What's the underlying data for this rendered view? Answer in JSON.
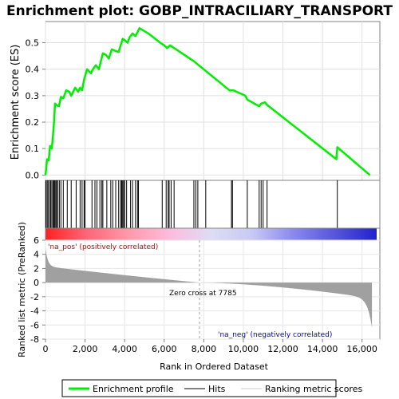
{
  "chart_data": {
    "type": "line",
    "title": "Enrichment plot: GOBP_INTRACILIARY_TRANSPORT",
    "xlabel": "Rank in Ordered Dataset",
    "xlim": [
      0,
      16900
    ],
    "x_ticks": [
      "0",
      "2,000",
      "4,000",
      "6,000",
      "8,000",
      "10,000",
      "12,000",
      "14,000",
      "16,000"
    ],
    "es_panel": {
      "ylabel": "Enrichment score (ES)",
      "ylim": [
        -0.02,
        0.58
      ],
      "y_ticks": [
        "0.0",
        "0.1",
        "0.2",
        "0.3",
        "0.4",
        "0.5"
      ],
      "series": [
        {
          "name": "Enrichment profile",
          "color": "#00ee00",
          "x": [
            0,
            80,
            160,
            230,
            320,
            380,
            430,
            480,
            550,
            680,
            780,
            900,
            1050,
            1200,
            1300,
            1500,
            1650,
            1750,
            1850,
            1950,
            2100,
            2300,
            2400,
            2550,
            2700,
            2800,
            2900,
            3050,
            3200,
            3350,
            3500,
            3700,
            3800,
            3900,
            4000,
            4150,
            4250,
            4400,
            4550,
            4650,
            4750,
            5200,
            5800,
            6000,
            6150,
            6300,
            6500,
            7500,
            9300,
            9500,
            10100,
            10200,
            10800,
            10900,
            11100,
            11200,
            14700,
            14750,
            16400
          ],
          "y": [
            0.0,
            0.06,
            0.055,
            0.11,
            0.1,
            0.15,
            0.2,
            0.27,
            0.265,
            0.26,
            0.295,
            0.29,
            0.32,
            0.315,
            0.3,
            0.33,
            0.315,
            0.33,
            0.32,
            0.36,
            0.4,
            0.385,
            0.4,
            0.415,
            0.4,
            0.43,
            0.46,
            0.455,
            0.44,
            0.475,
            0.47,
            0.465,
            0.49,
            0.515,
            0.51,
            0.5,
            0.52,
            0.535,
            0.525,
            0.54,
            0.555,
            0.535,
            0.5,
            0.49,
            0.48,
            0.49,
            0.48,
            0.43,
            0.32,
            0.32,
            0.3,
            0.285,
            0.26,
            0.27,
            0.275,
            0.265,
            0.06,
            0.105,
            0.0
          ]
        }
      ]
    },
    "hits": {
      "name": "Hits",
      "x": [
        20,
        80,
        130,
        200,
        260,
        320,
        380,
        430,
        470,
        520,
        560,
        620,
        700,
        780,
        900,
        1100,
        1300,
        1550,
        1750,
        1850,
        1950,
        2000,
        2350,
        2500,
        2600,
        2750,
        2850,
        2900,
        3100,
        3300,
        3400,
        3550,
        3700,
        3800,
        3850,
        3900,
        3950,
        4000,
        4100,
        4300,
        4400,
        4550,
        4650,
        4700,
        5900,
        6100,
        6200,
        6250,
        6350,
        6500,
        7500,
        7600,
        7700,
        8100,
        9400,
        9450,
        10200,
        10800,
        10900,
        11000,
        11200,
        14750
      ]
    },
    "colorbar": {
      "stops": [
        "#ff2222",
        "#ff6677",
        "#ff99aa",
        "#ffbbdd",
        "#ddddf5",
        "#c8c8f5",
        "#8888ee",
        "#5555dd",
        "#2222cc"
      ],
      "pos_label": "'na_pos' (positively correlated)",
      "neg_label": "'na_neg' (negatively correlated)",
      "pos_color": "#cc0000",
      "neg_color": "#0000cc"
    },
    "metric_panel": {
      "ylabel": "Ranked list metric (PreRanked)",
      "ylim": [
        -8,
        6
      ],
      "y_ticks": [
        "-8",
        "-6",
        "-4",
        "-2",
        "0",
        "2",
        "4",
        "6"
      ],
      "zero_cross_label": "Zero cross at 7785",
      "zero_cross": 7785,
      "total": 16500,
      "fill_color": "#a0a0a0"
    },
    "legend": {
      "items": [
        {
          "label": "Enrichment profile",
          "color": "#00ee00",
          "style": "thick-line"
        },
        {
          "label": "Hits",
          "color": "#000000",
          "style": "thin-line"
        },
        {
          "label": "Ranking metric scores",
          "color": "#c8c8c8",
          "style": "thin-line"
        }
      ]
    }
  }
}
